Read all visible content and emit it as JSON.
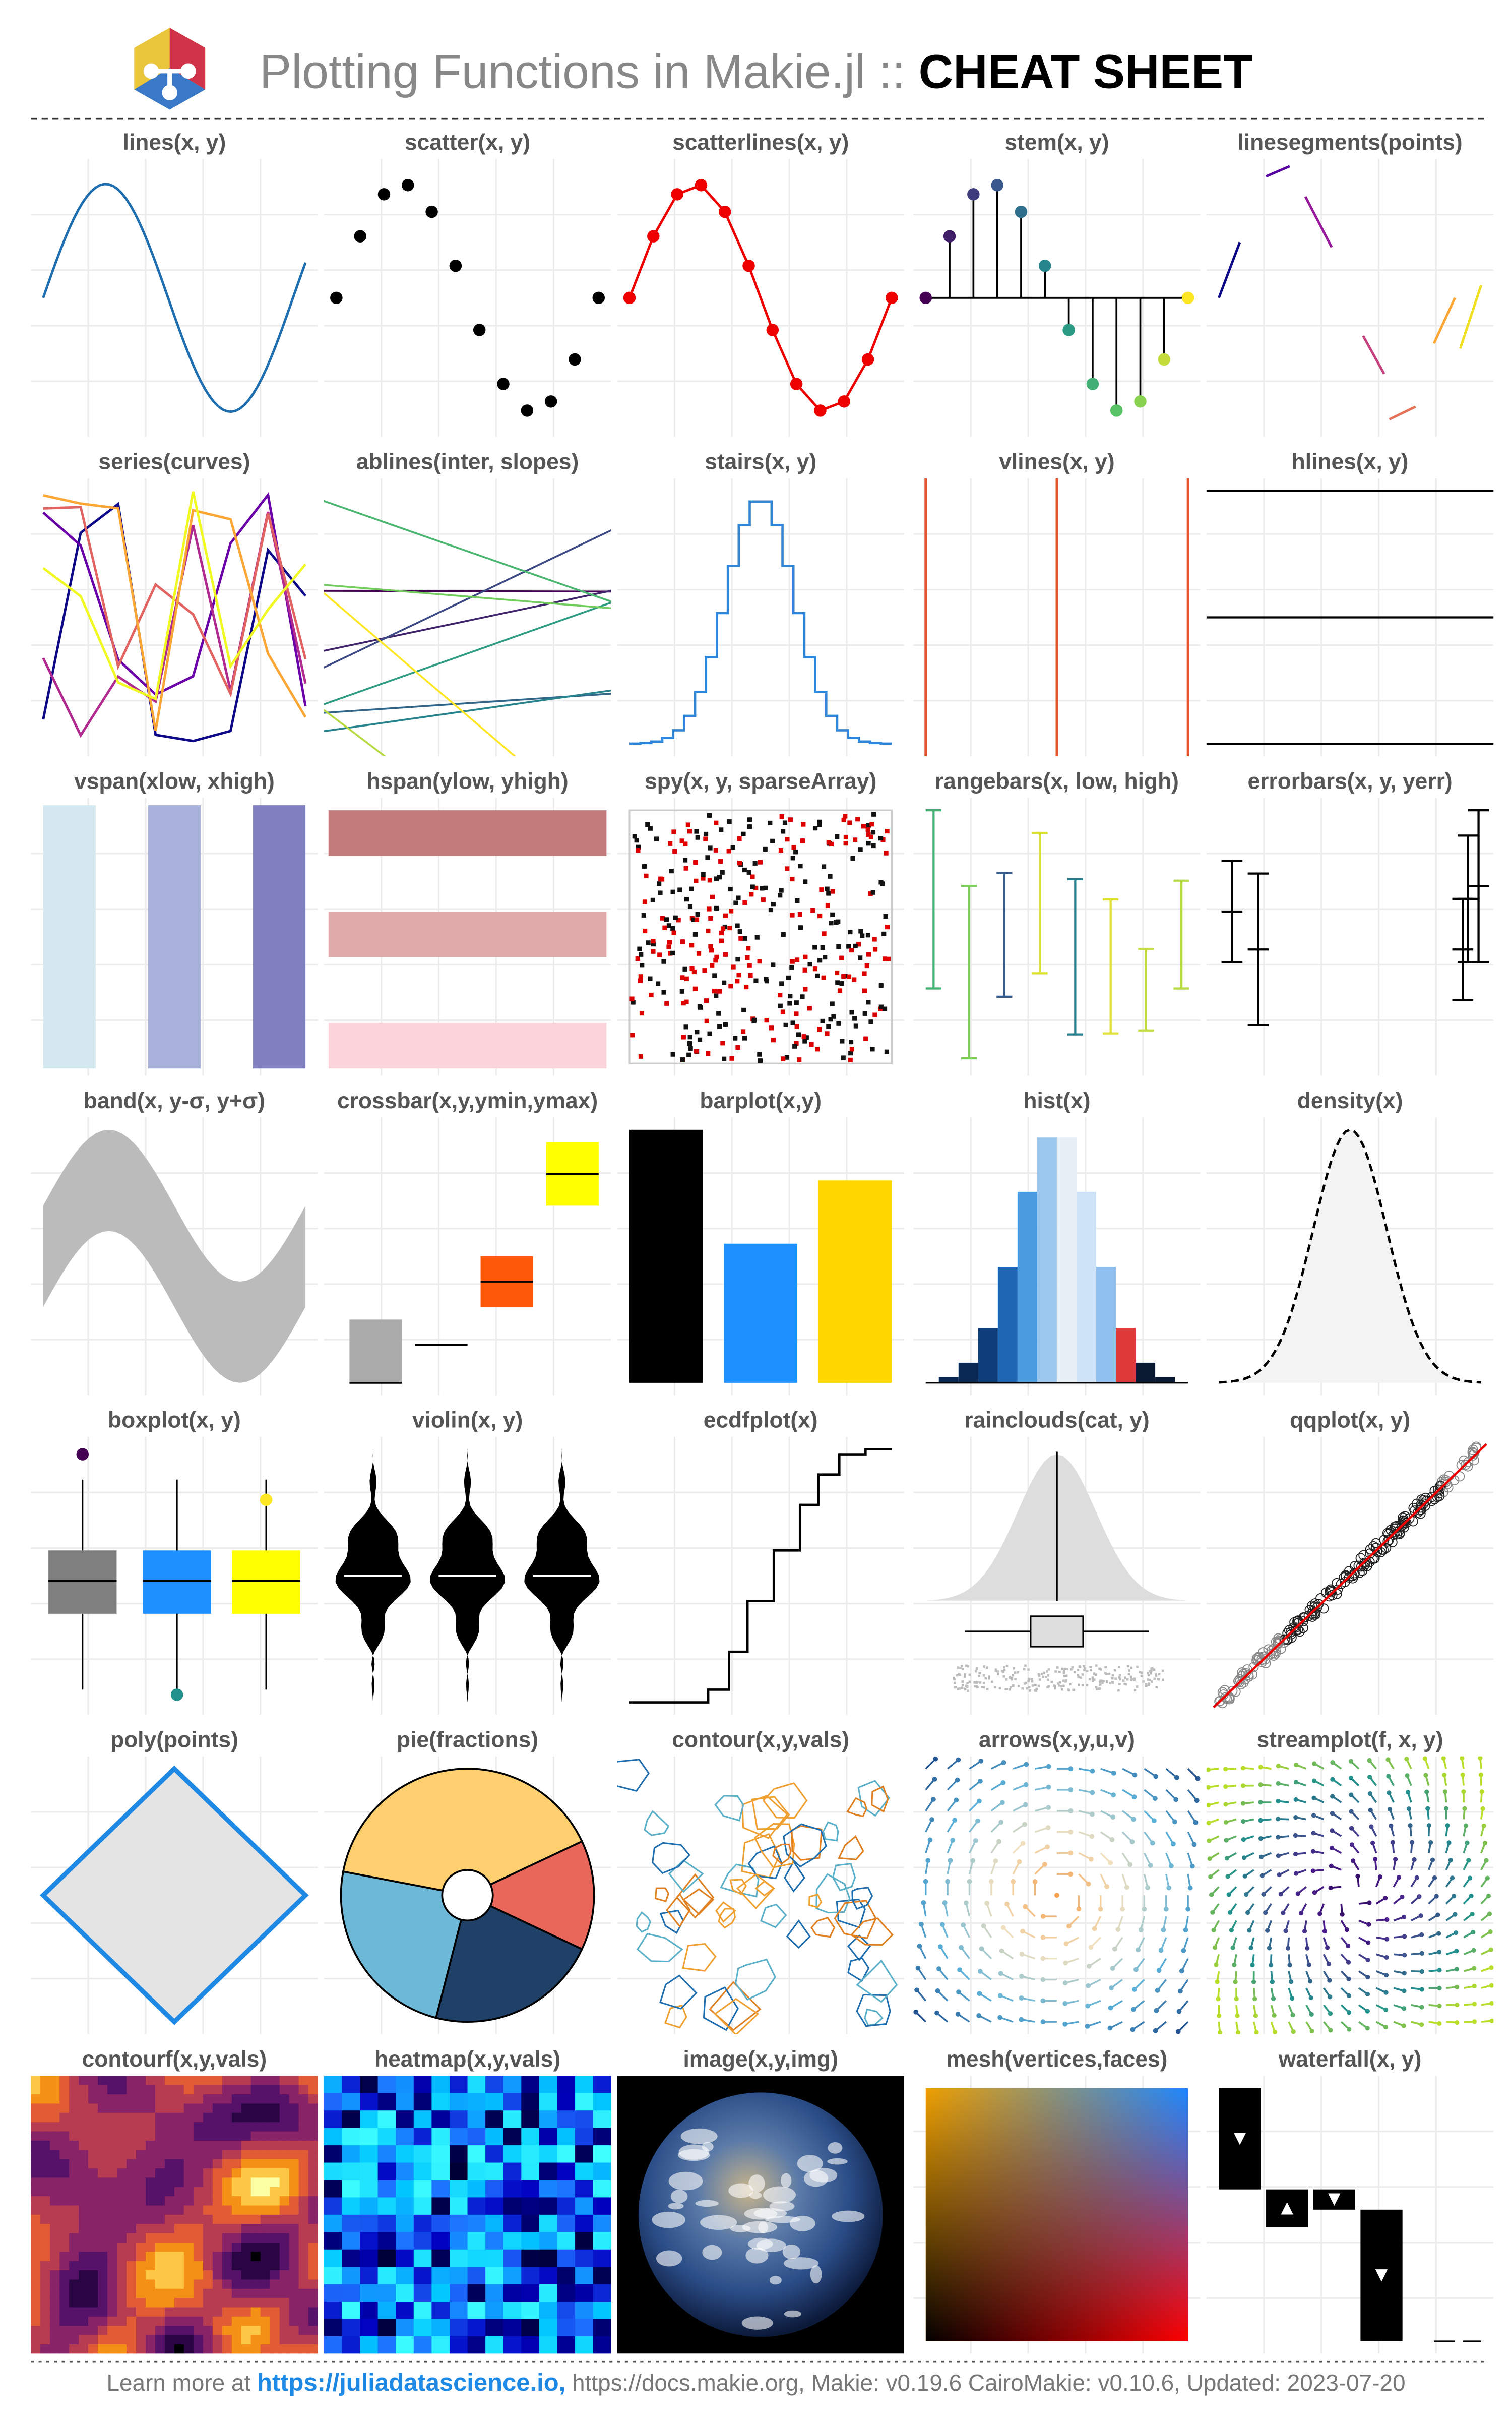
{
  "header": {
    "title_main": "Plotting Functions in Makie.jl ::",
    "title_bold": "CHEAT SHEET"
  },
  "panels": [
    {
      "title": "lines(x, y)"
    },
    {
      "title": "scatter(x, y)"
    },
    {
      "title": "scatterlines(x, y)"
    },
    {
      "title": "stem(x, y)"
    },
    {
      "title": "linesegments(points)"
    },
    {
      "title": "series(curves)"
    },
    {
      "title": "ablines(inter, slopes)"
    },
    {
      "title": "stairs(x, y)"
    },
    {
      "title": "vlines(x, y)"
    },
    {
      "title": "hlines(x, y)"
    },
    {
      "title": "vspan(xlow, xhigh)"
    },
    {
      "title": "hspan(ylow, yhigh)"
    },
    {
      "title": "spy(x, y, sparseArray)"
    },
    {
      "title": "rangebars(x, low, high)"
    },
    {
      "title": "errorbars(x, y, yerr)"
    },
    {
      "title": "band(x, y-σ, y+σ)"
    },
    {
      "title": "crossbar(x,y,ymin,ymax)"
    },
    {
      "title": "barplot(x,y)"
    },
    {
      "title": "hist(x)"
    },
    {
      "title": "density(x)"
    },
    {
      "title": "boxplot(x, y)"
    },
    {
      "title": "violin(x, y)"
    },
    {
      "title": "ecdfplot(x)"
    },
    {
      "title": "rainclouds(cat, y)"
    },
    {
      "title": "qqplot(x, y)"
    },
    {
      "title": "poly(points)"
    },
    {
      "title": "pie(fractions)"
    },
    {
      "title": "contour(x,y,vals)"
    },
    {
      "title": "arrows(x,y,u,v)"
    },
    {
      "title": "streamplot(f, x, y)"
    },
    {
      "title": "contourf(x,y,vals)"
    },
    {
      "title": "heatmap(x,y,vals)"
    },
    {
      "title": "image(x,y,img)"
    },
    {
      "title": "mesh(vertices,faces)"
    },
    {
      "title": "waterfall(x, y)"
    }
  ],
  "footer": {
    "prefix": "Learn more at",
    "link": "https://juliadatascience.io,",
    "suffix": "https://docs.makie.org, Makie: v0.19.6 CairoMakie: v0.10.6, Updated: 2023-07-20"
  }
}
